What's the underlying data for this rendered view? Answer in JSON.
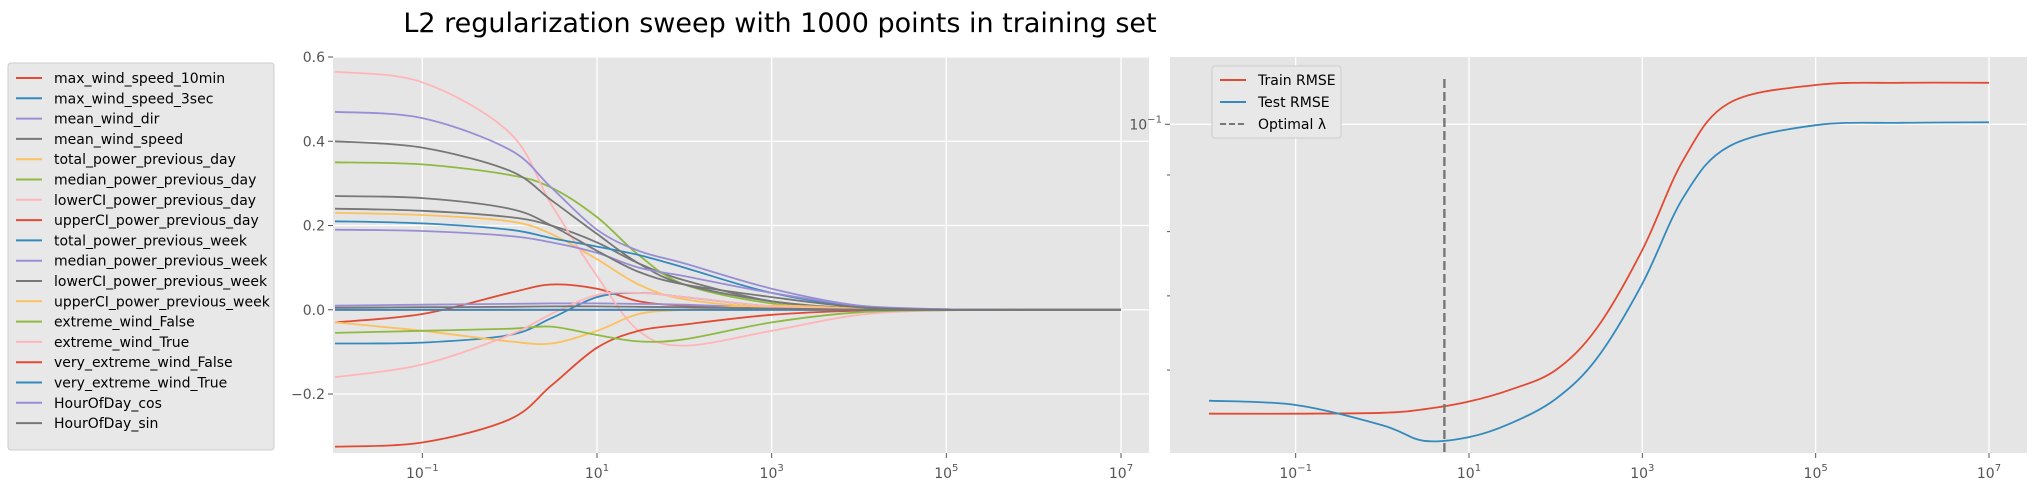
{
  "figure": {
    "title": "L2 regularization sweep with 1000 points in training set"
  },
  "chart_data": [
    {
      "type": "line",
      "panel": "coefficient-paths",
      "title": "",
      "xlabel": "",
      "ylabel": "",
      "xscale": "log",
      "xlim": [
        0.01,
        10000000
      ],
      "ylim": [
        -0.34,
        0.6
      ],
      "x_ticks": [
        0.1,
        10,
        1000,
        100000,
        10000000
      ],
      "x_tick_labels": [
        {
          "base": "10",
          "exp": "−1"
        },
        {
          "base": "10",
          "exp": "1"
        },
        {
          "base": "10",
          "exp": "3"
        },
        {
          "base": "10",
          "exp": "5"
        },
        {
          "base": "10",
          "exp": "7"
        }
      ],
      "y_ticks": [
        -0.2,
        0.0,
        0.2,
        0.4,
        0.6
      ],
      "y_tick_labels": [
        "−0.2",
        "0.0",
        "0.2",
        "0.4",
        "0.6"
      ],
      "grid": true,
      "legend": "outside-left",
      "x": [
        0.01,
        0.1,
        1,
        3,
        10,
        30,
        100,
        1000,
        10000,
        100000,
        1000000,
        10000000
      ],
      "series": [
        {
          "name": "max_wind_speed_10min",
          "color": "#E24A33",
          "values": [
            -0.03,
            -0.01,
            0.04,
            0.06,
            0.05,
            0.02,
            0.01,
            0.003,
            0.0005,
            0.0,
            0.0,
            0.0
          ]
        },
        {
          "name": "max_wind_speed_3sec",
          "color": "#348ABD",
          "values": [
            -0.08,
            -0.078,
            -0.06,
            -0.02,
            0.03,
            0.04,
            0.03,
            0.008,
            0.001,
            0.0,
            0.0,
            0.0
          ]
        },
        {
          "name": "mean_wind_dir",
          "color": "#988ED5",
          "values": [
            0.01,
            0.012,
            0.014,
            0.015,
            0.015,
            0.014,
            0.012,
            0.005,
            0.001,
            0.0,
            0.0,
            0.0
          ]
        },
        {
          "name": "mean_wind_speed",
          "color": "#777777",
          "values": [
            0.24,
            0.235,
            0.22,
            0.2,
            0.16,
            0.11,
            0.07,
            0.02,
            0.003,
            0.0,
            0.0,
            0.0
          ]
        },
        {
          "name": "total_power_previous_day",
          "color": "#FBC15E",
          "values": [
            0.23,
            0.225,
            0.21,
            0.18,
            0.12,
            0.06,
            0.025,
            0.005,
            0.001,
            0.0,
            0.0,
            0.0
          ]
        },
        {
          "name": "median_power_previous_day",
          "color": "#8EBA42",
          "values": [
            0.35,
            0.345,
            0.32,
            0.29,
            0.22,
            0.13,
            0.06,
            0.015,
            0.002,
            0.0,
            0.0,
            0.0
          ]
        },
        {
          "name": "lowerCI_power_previous_day",
          "color": "#FFB5B8",
          "values": [
            0.565,
            0.54,
            0.42,
            0.25,
            0.08,
            -0.05,
            -0.085,
            -0.05,
            -0.012,
            -0.001,
            0.0,
            0.0
          ]
        },
        {
          "name": "upperCI_power_previous_day",
          "color": "#E24A33",
          "values": [
            -0.325,
            -0.315,
            -0.26,
            -0.18,
            -0.09,
            -0.05,
            -0.035,
            -0.012,
            -0.002,
            0.0,
            0.0,
            0.0
          ]
        },
        {
          "name": "total_power_previous_week",
          "color": "#348ABD",
          "values": [
            0.21,
            0.205,
            0.19,
            0.17,
            0.15,
            0.13,
            0.1,
            0.04,
            0.008,
            0.001,
            0.0,
            0.0
          ]
        },
        {
          "name": "median_power_previous_week",
          "color": "#988ED5",
          "values": [
            0.47,
            0.455,
            0.38,
            0.29,
            0.19,
            0.14,
            0.11,
            0.05,
            0.01,
            0.001,
            0.0,
            0.0
          ]
        },
        {
          "name": "lowerCI_power_previous_week",
          "color": "#777777",
          "values": [
            0.4,
            0.385,
            0.33,
            0.26,
            0.18,
            0.11,
            0.06,
            0.02,
            0.003,
            0.0,
            0.0,
            0.0
          ]
        },
        {
          "name": "upperCI_power_previous_week",
          "color": "#FBC15E",
          "values": [
            -0.03,
            -0.05,
            -0.075,
            -0.08,
            -0.05,
            -0.01,
            0.0,
            0.01,
            0.003,
            0.0,
            0.0,
            0.0
          ]
        },
        {
          "name": "extreme_wind_False",
          "color": "#8EBA42",
          "values": [
            -0.055,
            -0.05,
            -0.045,
            -0.04,
            -0.06,
            -0.075,
            -0.07,
            -0.03,
            -0.006,
            -0.001,
            0.0,
            0.0
          ]
        },
        {
          "name": "extreme_wind_True",
          "color": "#FFB5B8",
          "values": [
            -0.16,
            -0.13,
            -0.06,
            -0.01,
            0.035,
            0.04,
            0.03,
            0.008,
            0.001,
            0.0,
            0.0,
            0.0
          ]
        },
        {
          "name": "very_extreme_wind_False",
          "color": "#E24A33",
          "values": [
            0.0,
            0.0,
            0.0,
            0.0,
            0.0,
            0.0,
            0.0,
            0.0,
            0.0,
            0.0,
            0.0,
            0.0
          ]
        },
        {
          "name": "very_extreme_wind_True",
          "color": "#348ABD",
          "values": [
            0.0,
            0.0,
            0.0,
            0.0,
            0.0,
            0.0,
            0.0,
            0.0,
            0.0,
            0.0,
            0.0,
            0.0
          ]
        },
        {
          "name": "HourOfDay_cos",
          "color": "#988ED5",
          "values": [
            0.19,
            0.187,
            0.175,
            0.16,
            0.135,
            0.1,
            0.08,
            0.04,
            0.01,
            0.001,
            0.0,
            0.0
          ]
        },
        {
          "name": "HourOfDay_sin",
          "color": "#777777",
          "values": [
            0.27,
            0.265,
            0.24,
            0.2,
            0.14,
            0.09,
            0.06,
            0.03,
            0.006,
            0.0,
            0.0,
            0.0
          ]
        },
        {
          "name": "",
          "color": "#777777",
          "values": [
            0.005,
            0.006,
            0.007,
            0.008,
            0.008,
            0.007,
            0.006,
            0.003,
            0.0005,
            0.0,
            0.0,
            0.0
          ]
        }
      ]
    },
    {
      "type": "line",
      "panel": "rmse-curves",
      "title": "",
      "xlabel": "",
      "ylabel": "",
      "xscale": "log",
      "yscale": "log",
      "xlim": [
        0.01,
        10000000
      ],
      "ylim": [
        0.0505,
        0.115
      ],
      "x_ticks": [
        0.1,
        10,
        1000,
        100000,
        10000000
      ],
      "x_tick_labels": [
        {
          "base": "10",
          "exp": "−1"
        },
        {
          "base": "10",
          "exp": "1"
        },
        {
          "base": "10",
          "exp": "3"
        },
        {
          "base": "10",
          "exp": "5"
        },
        {
          "base": "10",
          "exp": "7"
        }
      ],
      "y_ticks": [
        0.1
      ],
      "y_tick_labels": [
        {
          "base": "10",
          "exp": "−1"
        }
      ],
      "y_minor_ticks": [
        0.06,
        0.07,
        0.08,
        0.09
      ],
      "grid": true,
      "legend": "upper-left",
      "x": [
        0.01,
        0.1,
        1,
        3,
        10,
        30,
        100,
        300,
        1000,
        3000,
        10000,
        100000,
        1000000,
        10000000
      ],
      "series": [
        {
          "name": "Train RMSE",
          "color": "#E24A33",
          "style": "solid",
          "values": [
            0.0548,
            0.0548,
            0.0549,
            0.0553,
            0.0562,
            0.0576,
            0.06,
            0.0655,
            0.077,
            0.093,
            0.1045,
            0.1085,
            0.109,
            0.109
          ]
        },
        {
          "name": "Test RMSE",
          "color": "#348ABD",
          "style": "solid",
          "values": [
            0.0563,
            0.0558,
            0.0535,
            0.0518,
            0.0522,
            0.0537,
            0.0565,
            0.0615,
            0.0718,
            0.086,
            0.0955,
            0.0998,
            0.1003,
            0.1004
          ]
        }
      ],
      "reference_lines": [
        {
          "name": "Optimal λ",
          "orientation": "vertical",
          "x": 5.2,
          "color": "#777777",
          "style": "dashed"
        }
      ]
    }
  ]
}
